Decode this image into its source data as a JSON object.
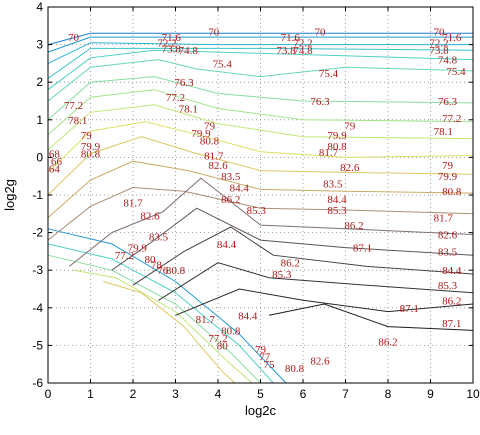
{
  "chart_data": {
    "type": "contour",
    "xlabel": "log2c",
    "ylabel": "log2g",
    "xlim": [
      0,
      10
    ],
    "ylim": [
      -6,
      4
    ],
    "xticks": [
      "0",
      "1",
      "2",
      "3",
      "4",
      "5",
      "6",
      "7",
      "8",
      "9",
      "10"
    ],
    "yticks": [
      "-6",
      "-5",
      "-4",
      "-3",
      "-2",
      "-1",
      "0",
      "1",
      "2",
      "3",
      "4"
    ],
    "grid": true,
    "levels": [
      {
        "value": 70,
        "color": "#1f7fd0",
        "line": [
          [
            0,
            3.0
          ],
          [
            1,
            3.3
          ],
          [
            4,
            3.3
          ],
          [
            7,
            3.3
          ],
          [
            10,
            3.3
          ]
        ],
        "labels": [
          [
            0.6,
            3.2,
            "70"
          ],
          [
            3.9,
            3.35,
            "70"
          ],
          [
            6.4,
            3.35,
            "70"
          ],
          [
            9.2,
            3.35,
            "70"
          ]
        ]
      },
      {
        "value": 71.6,
        "color": "#1f9ad6",
        "line": [
          [
            0,
            2.8
          ],
          [
            1,
            3.2
          ],
          [
            4,
            3.2
          ],
          [
            10,
            3.2
          ]
        ],
        "labels": [
          [
            2.9,
            3.2,
            "71.6"
          ],
          [
            5.7,
            3.2,
            "71.6"
          ],
          [
            9.5,
            3.2,
            "71.6"
          ]
        ]
      },
      {
        "value": 72.2,
        "color": "#27b2d8",
        "line": [
          [
            0,
            2.5
          ],
          [
            1,
            3.05
          ],
          [
            4,
            3.0
          ],
          [
            10,
            3.0
          ]
        ],
        "labels": [
          [
            2.8,
            3.05,
            "72.2"
          ],
          [
            6.0,
            3.05,
            "72.2"
          ],
          [
            9.2,
            3.05,
            "72.2"
          ]
        ]
      },
      {
        "value": 73.8,
        "color": "#37c3cf",
        "line": [
          [
            0,
            2.1
          ],
          [
            1,
            2.9
          ],
          [
            3,
            2.9
          ],
          [
            5,
            2.9
          ],
          [
            10,
            2.85
          ]
        ],
        "labels": [
          [
            2.9,
            2.9,
            "73.8"
          ],
          [
            5.6,
            2.85,
            "73.8"
          ],
          [
            9.2,
            2.85,
            "73.8"
          ]
        ]
      },
      {
        "value": 74.8,
        "color": "#4ed0c4",
        "line": [
          [
            0,
            1.8
          ],
          [
            1,
            2.65
          ],
          [
            2.5,
            2.85
          ],
          [
            4,
            2.8
          ],
          [
            10,
            2.6
          ]
        ],
        "labels": [
          [
            3.3,
            2.85,
            "74.8"
          ],
          [
            6.0,
            2.85,
            "74.8"
          ],
          [
            9.4,
            2.6,
            "74.8"
          ]
        ]
      },
      {
        "value": 75.4,
        "color": "#66d8b4",
        "line": [
          [
            0,
            1.5
          ],
          [
            1,
            2.4
          ],
          [
            2.6,
            2.6
          ],
          [
            3.5,
            2.35
          ],
          [
            5,
            2.15
          ],
          [
            7,
            2.4
          ],
          [
            10,
            2.3
          ]
        ],
        "labels": [
          [
            4.1,
            2.5,
            "75.4"
          ],
          [
            6.6,
            2.25,
            "75.4"
          ],
          [
            9.6,
            2.3,
            "75.4"
          ]
        ]
      },
      {
        "value": 76.3,
        "color": "#86dfa0",
        "line": [
          [
            0,
            1.0
          ],
          [
            1,
            2.0
          ],
          [
            2.5,
            2.15
          ],
          [
            4,
            1.7
          ],
          [
            6,
            1.5
          ],
          [
            10,
            1.45
          ]
        ],
        "labels": [
          [
            3.2,
            2.0,
            "76.3"
          ],
          [
            6.4,
            1.5,
            "76.3"
          ],
          [
            9.4,
            1.5,
            "76.3"
          ]
        ]
      },
      {
        "value": 77.2,
        "color": "#a4e38b",
        "line": [
          [
            0,
            0.6
          ],
          [
            1,
            1.6
          ],
          [
            2.5,
            1.8
          ],
          [
            4,
            1.3
          ],
          [
            6,
            1.0
          ],
          [
            10,
            0.95
          ]
        ],
        "labels": [
          [
            0.6,
            1.4,
            "77.2"
          ],
          [
            3.0,
            1.6,
            "77.2"
          ],
          [
            9.5,
            1.05,
            "77.2"
          ]
        ]
      },
      {
        "value": 78.1,
        "color": "#c2e676",
        "line": [
          [
            0,
            0.2
          ],
          [
            1,
            1.2
          ],
          [
            2.5,
            1.4
          ],
          [
            4,
            0.9
          ],
          [
            6,
            0.55
          ],
          [
            10,
            0.5
          ]
        ],
        "labels": [
          [
            0.7,
            1.0,
            "78.1"
          ],
          [
            3.3,
            1.3,
            "78.1"
          ],
          [
            9.3,
            0.7,
            "78.1"
          ]
        ]
      },
      {
        "value": 79.0,
        "color": "#dce065",
        "line": [
          [
            0,
            -0.4
          ],
          [
            1,
            0.7
          ],
          [
            2.3,
            0.95
          ],
          [
            3.7,
            0.55
          ],
          [
            5,
            0.15
          ],
          [
            7,
            0.0
          ],
          [
            10,
            0.05
          ]
        ],
        "labels": [
          [
            0.9,
            0.6,
            "79"
          ],
          [
            3.8,
            0.85,
            "79"
          ],
          [
            7.1,
            0.85,
            "79"
          ],
          [
            9.4,
            -0.2,
            "79"
          ]
        ]
      },
      {
        "value": 79.9,
        "color": "#ddc763",
        "line": [
          [
            0,
            -1.0
          ],
          [
            1,
            0.1
          ],
          [
            2.2,
            0.55
          ],
          [
            3.5,
            0.1
          ],
          [
            5,
            -0.35
          ],
          [
            7,
            -0.4
          ],
          [
            10,
            -0.45
          ]
        ],
        "labels": [
          [
            1.0,
            0.3,
            "79.9"
          ],
          [
            3.6,
            0.65,
            "79.9"
          ],
          [
            6.8,
            0.6,
            "79.9"
          ],
          [
            9.4,
            -0.5,
            "79.9"
          ]
        ]
      },
      {
        "value": 80.8,
        "color": "#c9ab66",
        "line": [
          [
            0,
            -1.6
          ],
          [
            1,
            -0.6
          ],
          [
            2.0,
            -0.1
          ],
          [
            3.3,
            -0.35
          ],
          [
            5,
            -0.85
          ],
          [
            7,
            -0.9
          ],
          [
            10,
            -0.95
          ]
        ],
        "labels": [
          [
            1.0,
            0.1,
            "80.8"
          ],
          [
            3.8,
            0.45,
            "80.8"
          ],
          [
            6.8,
            0.3,
            "80.8"
          ],
          [
            9.5,
            -0.9,
            "80.8"
          ]
        ]
      },
      {
        "value": 81.7,
        "color": "#a89074",
        "line": [
          [
            0,
            -2.2
          ],
          [
            1,
            -1.3
          ],
          [
            2.0,
            -0.8
          ],
          [
            3.2,
            -0.9
          ],
          [
            5,
            -1.35
          ],
          [
            7,
            -1.4
          ],
          [
            10,
            -1.5
          ]
        ],
        "labels": [
          [
            2.0,
            -1.2,
            "81.7"
          ],
          [
            3.9,
            0.05,
            "81.7"
          ],
          [
            6.6,
            0.15,
            "81.7"
          ],
          [
            9.3,
            -1.6,
            "81.7"
          ]
        ]
      },
      {
        "value": 82.6,
        "color": "#7f6f74",
        "line": [
          [
            0.5,
            -2.9
          ],
          [
            1.5,
            -2.0
          ],
          [
            2.7,
            -1.45
          ],
          [
            3.6,
            -0.55
          ],
          [
            5,
            -1.8
          ],
          [
            7,
            -1.9
          ],
          [
            10,
            -2.05
          ]
        ],
        "labels": [
          [
            2.4,
            -1.55,
            "82.6"
          ],
          [
            4.0,
            -0.2,
            "82.6"
          ],
          [
            7.1,
            -0.25,
            "82.6"
          ],
          [
            9.4,
            -2.05,
            "82.6"
          ]
        ]
      },
      {
        "value": 83.5,
        "color": "#5e5359",
        "line": [
          [
            1.5,
            -3.0
          ],
          [
            2.5,
            -2.2
          ],
          [
            3.5,
            -1.35
          ],
          [
            5,
            -2.2
          ],
          [
            7,
            -2.4
          ],
          [
            10,
            -2.6
          ]
        ],
        "labels": [
          [
            2.6,
            -2.1,
            "83.5"
          ],
          [
            4.3,
            -0.5,
            "83.5"
          ],
          [
            6.7,
            -0.7,
            "83.5"
          ],
          [
            9.4,
            -2.5,
            "83.5"
          ]
        ]
      },
      {
        "value": 84.4,
        "color": "#4a4144",
        "line": [
          [
            2.0,
            -3.4
          ],
          [
            3.2,
            -2.5
          ],
          [
            4.3,
            -1.85
          ],
          [
            5.3,
            -2.6
          ],
          [
            7.5,
            -2.9
          ],
          [
            10,
            -3.1
          ]
        ],
        "labels": [
          [
            4.2,
            -2.3,
            "84.4"
          ],
          [
            4.5,
            -0.8,
            "84.4"
          ],
          [
            6.8,
            -1.1,
            "84.4"
          ],
          [
            4.7,
            -4.2,
            "84.4"
          ],
          [
            9.5,
            -3.0,
            "84.4"
          ]
        ]
      },
      {
        "value": 85.3,
        "color": "#383334",
        "line": [
          [
            2.6,
            -3.8
          ],
          [
            4.0,
            -2.8
          ],
          [
            5.2,
            -3.2
          ],
          [
            7.5,
            -3.4
          ],
          [
            10,
            -3.6
          ]
        ],
        "labels": [
          [
            4.9,
            -1.4,
            "85.3"
          ],
          [
            6.8,
            -1.4,
            "85.3"
          ],
          [
            5.5,
            -3.1,
            "85.3"
          ],
          [
            9.4,
            -3.4,
            "85.3"
          ]
        ]
      },
      {
        "value": 86.2,
        "color": "#2a2627",
        "line": [
          [
            3.0,
            -4.2
          ],
          [
            4.5,
            -3.5
          ],
          [
            6.0,
            -3.8
          ],
          [
            8.0,
            -4.1
          ],
          [
            10,
            -3.9
          ]
        ],
        "labels": [
          [
            4.3,
            -1.1,
            "86.2"
          ],
          [
            7.2,
            -1.8,
            "86.2"
          ],
          [
            5.7,
            -2.8,
            "86.2"
          ],
          [
            8.0,
            -4.9,
            "86.2"
          ],
          [
            9.5,
            -3.8,
            "86.2"
          ]
        ]
      },
      {
        "value": 87.1,
        "color": "#1e1b1c",
        "line": [
          [
            5.2,
            -4.2
          ],
          [
            6.5,
            -3.9
          ],
          [
            8.0,
            -4.5
          ],
          [
            10,
            -4.6
          ]
        ],
        "labels": [
          [
            7.4,
            -2.4,
            "87.1"
          ],
          [
            8.5,
            -4.0,
            "87.1"
          ],
          [
            9.5,
            -4.4,
            "87.1"
          ]
        ]
      }
    ],
    "edge_labels": [
      [
        0.15,
        0.1,
        "68"
      ],
      [
        0.2,
        -0.1,
        "66"
      ],
      [
        0.15,
        -0.3,
        "64"
      ],
      [
        2.4,
        -2.7,
        "80"
      ],
      [
        2.55,
        -2.85,
        "78"
      ],
      [
        2.7,
        -3.0,
        "76"
      ],
      [
        5.0,
        -5.1,
        "79"
      ],
      [
        5.1,
        -5.3,
        "77"
      ],
      [
        5.2,
        -5.5,
        "75"
      ],
      [
        3.7,
        -4.3,
        "81.7"
      ],
      [
        4.3,
        -4.6,
        "80.8"
      ],
      [
        4.0,
        -4.8,
        "77.2"
      ],
      [
        4.1,
        -5.0,
        "80"
      ],
      [
        6.4,
        -5.4,
        "82.6"
      ],
      [
        5.8,
        -5.6,
        "80.8"
      ],
      [
        1.8,
        -2.6,
        "77.2"
      ],
      [
        3.0,
        -3.0,
        "80.8"
      ],
      [
        2.1,
        -2.4,
        "79.9"
      ]
    ],
    "valley_lines": [
      {
        "color": "#1f9ad6",
        "line": [
          [
            0,
            -1.9
          ],
          [
            1.5,
            -2.3
          ],
          [
            3,
            -3.3
          ],
          [
            4.5,
            -4.7
          ],
          [
            5.6,
            -6
          ]
        ]
      },
      {
        "color": "#4ed0c4",
        "line": [
          [
            0,
            -2.3
          ],
          [
            1.5,
            -2.7
          ],
          [
            3,
            -3.6
          ],
          [
            4.5,
            -5.0
          ],
          [
            5.3,
            -6
          ]
        ]
      },
      {
        "color": "#86dfa0",
        "line": [
          [
            0,
            -2.6
          ],
          [
            1.5,
            -3.0
          ],
          [
            3,
            -3.9
          ],
          [
            4.3,
            -5.2
          ],
          [
            5.0,
            -6
          ]
        ]
      },
      {
        "color": "#c2e676",
        "line": [
          [
            0.6,
            -3.0
          ],
          [
            1.6,
            -3.2
          ],
          [
            3,
            -4.1
          ],
          [
            4.2,
            -5.4
          ],
          [
            4.8,
            -6
          ]
        ]
      },
      {
        "color": "#ddc763",
        "line": [
          [
            1.3,
            -3.3
          ],
          [
            2.2,
            -3.6
          ],
          [
            3.2,
            -4.5
          ],
          [
            4.1,
            -5.7
          ],
          [
            4.4,
            -6
          ]
        ]
      }
    ]
  }
}
